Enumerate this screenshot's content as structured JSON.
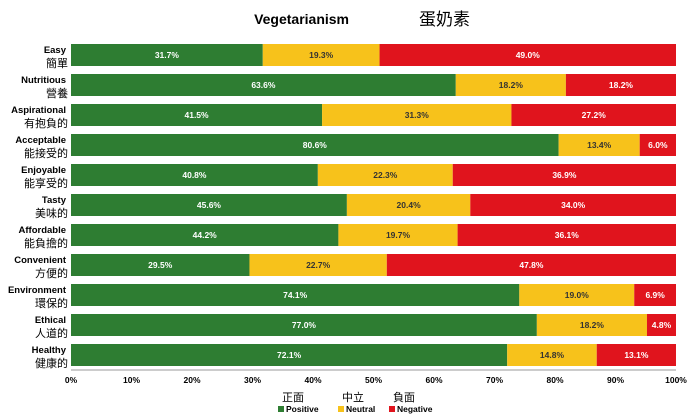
{
  "chart_data": {
    "type": "bar",
    "orientation": "horizontal",
    "stacked": "percent",
    "title": "Vegetarianism",
    "title_zh": "蛋奶素",
    "categories": [
      {
        "en": "Easy",
        "zh": "簡單"
      },
      {
        "en": "Nutritious",
        "zh": "營養"
      },
      {
        "en": "Aspirational",
        "zh": "有抱負的"
      },
      {
        "en": "Acceptable",
        "zh": "能接受的"
      },
      {
        "en": "Enjoyable",
        "zh": "能享受的"
      },
      {
        "en": "Tasty",
        "zh": "美味的"
      },
      {
        "en": "Affordable",
        "zh": "能負擔的"
      },
      {
        "en": "Convenient",
        "zh": "方便的"
      },
      {
        "en": "Environment",
        "zh": "環保的"
      },
      {
        "en": "Ethical",
        "zh": "人道的"
      },
      {
        "en": "Healthy",
        "zh": "健康的"
      }
    ],
    "series": [
      {
        "name": "Positive",
        "name_zh": "正面",
        "color": "#2e7d32",
        "label_color": "#ffffff",
        "values": [
          31.7,
          63.6,
          41.5,
          80.6,
          40.8,
          45.6,
          44.2,
          29.5,
          74.1,
          77.0,
          72.1
        ],
        "labels": [
          "31.7%",
          "63.6%",
          "41.5%",
          "80.6%",
          "40.8%",
          "45.6%",
          "44.2%",
          "29.5%",
          "74.1%",
          "77.0%",
          "72.1%"
        ]
      },
      {
        "name": "Neutral",
        "name_zh": "中立",
        "color": "#f7c21b",
        "label_color": "#333333",
        "values": [
          19.3,
          18.2,
          31.3,
          13.4,
          22.3,
          20.4,
          19.7,
          22.7,
          19.0,
          18.2,
          14.8
        ],
        "labels": [
          "19.3%",
          "18.2%",
          "31.3%",
          "13.4%",
          "22.3%",
          "20.4%",
          "19.7%",
          "22.7%",
          "19.0%",
          "18.2%",
          "14.8%"
        ]
      },
      {
        "name": "Negative",
        "name_zh": "負面",
        "color": "#e0141d",
        "label_color": "#ffffff",
        "values": [
          49.0,
          18.2,
          27.2,
          6.0,
          36.9,
          34.0,
          36.1,
          47.8,
          6.9,
          4.8,
          13.1
        ],
        "labels": [
          "49.0%",
          "18.2%",
          "27.2%",
          "6.0%",
          "36.9%",
          "34.0%",
          "36.1%",
          "47.8%",
          "6.9%",
          "4.8%",
          "13.1%"
        ]
      }
    ],
    "xlim": [
      0,
      100
    ],
    "x_ticks": [
      "0%",
      "10%",
      "20%",
      "30%",
      "40%",
      "50%",
      "60%",
      "70%",
      "80%",
      "90%",
      "100%"
    ],
    "legend_position": "bottom",
    "grid": false
  }
}
